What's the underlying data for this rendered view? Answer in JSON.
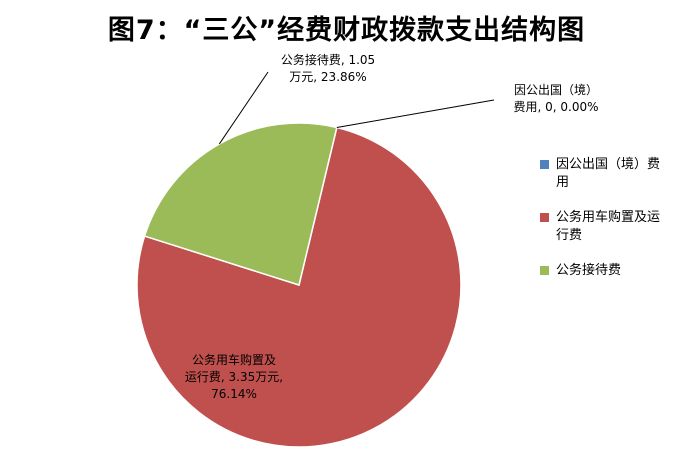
{
  "chart_data": {
    "type": "pie",
    "title": "图7：“三公”经费财政拨款支出结构图",
    "slices": [
      {
        "name": "因公出国（境）费用",
        "value": 0,
        "percent": 0.0,
        "label_lines": [
          "因公出国（境）",
          "费用, 0, 0.00%"
        ],
        "color": "#4f81bd"
      },
      {
        "name": "公务用车购置及运行费",
        "value": 3.35,
        "percent": 76.14,
        "label_lines": [
          "公务用车购置及",
          "运行费, 3.35万元,",
          "76.14%"
        ],
        "color": "#c0504d"
      },
      {
        "name": "公务接待费",
        "value": 1.05,
        "percent": 23.86,
        "label_lines": [
          "公务接待费, 1.05",
          "万元, 23.86%"
        ],
        "color": "#9bbb59"
      }
    ],
    "legend": {
      "position": "right",
      "items": [
        {
          "lines": [
            "因公出国（境）费",
            "用"
          ],
          "color": "#4f81bd"
        },
        {
          "lines": [
            "公务用车购置及运",
            "行费"
          ],
          "color": "#c0504d"
        },
        {
          "lines": [
            "公务接待费"
          ],
          "color": "#9bbb59"
        }
      ]
    }
  }
}
